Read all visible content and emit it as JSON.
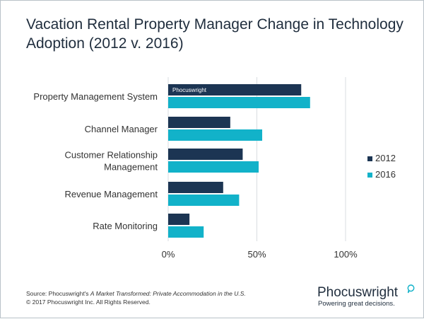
{
  "chart_data": {
    "type": "bar",
    "orientation": "horizontal",
    "title_lines": [
      "Vacation Rental Property Manager Change in Technology",
      "Adoption (2012 v. 2016)"
    ],
    "categories": [
      [
        "Property Management System"
      ],
      [
        "Channel Manager"
      ],
      [
        "Customer Relationship",
        "Management"
      ],
      [
        "Revenue Management"
      ],
      [
        "Rate Monitoring"
      ]
    ],
    "series": [
      {
        "name": "2012",
        "color": "#1c3553",
        "values": [
          75,
          35,
          42,
          31,
          12
        ]
      },
      {
        "name": "2016",
        "color": "#12b2c9",
        "values": [
          80,
          53,
          51,
          40,
          20
        ]
      }
    ],
    "x_ticks": [
      "0%",
      "50%",
      "100%"
    ],
    "xlim": [
      0,
      100
    ],
    "grid": true,
    "legend_position": "right",
    "watermark": "Phocuswright"
  },
  "footer": {
    "source_prefix": "Source: Phocuswright's ",
    "source_title": "A Market Transformed: Private Accommodation in the U.S.",
    "copyright": "© 2017 Phocuswright Inc. All Rights Reserved."
  },
  "brand": {
    "name": "Phocuswright",
    "tagline": "Powering great decisions."
  }
}
